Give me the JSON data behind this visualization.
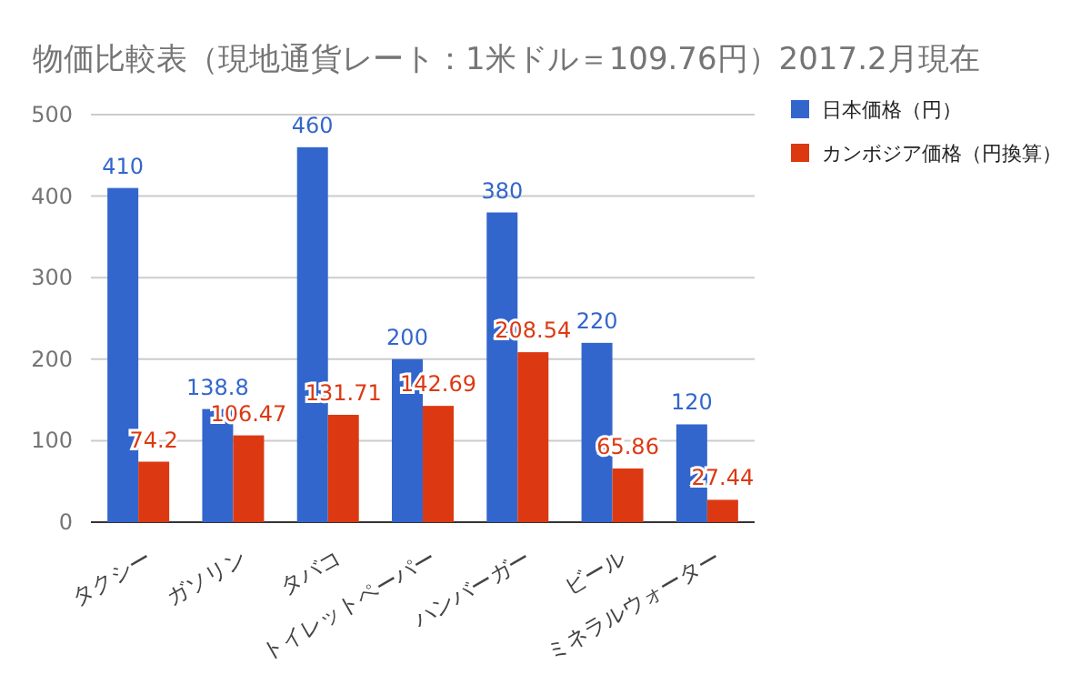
{
  "chart_data": {
    "type": "bar",
    "title": "物価比較表（現地通貨レート：1米ドル＝109.76円）2017.2月現在",
    "categories": [
      "タクシー",
      "ガソリン",
      "タバコ",
      "トイレットペーパー",
      "ハンバーガー",
      "ビール",
      "ミネラルウォーター"
    ],
    "series": [
      {
        "name": "日本価格（円）",
        "color": "#3366cc",
        "values": [
          410,
          138.8,
          460,
          200,
          380,
          220,
          120
        ]
      },
      {
        "name": "カンボジア価格（円換算）",
        "color": "#dc3912",
        "values": [
          74.2,
          106.47,
          131.71,
          142.69,
          208.54,
          65.86,
          27.44
        ]
      }
    ],
    "ylim": [
      0,
      500
    ],
    "yticks": [
      0,
      100,
      200,
      300,
      400,
      500
    ],
    "grid": "y",
    "legend": "right",
    "data_labels": true
  }
}
